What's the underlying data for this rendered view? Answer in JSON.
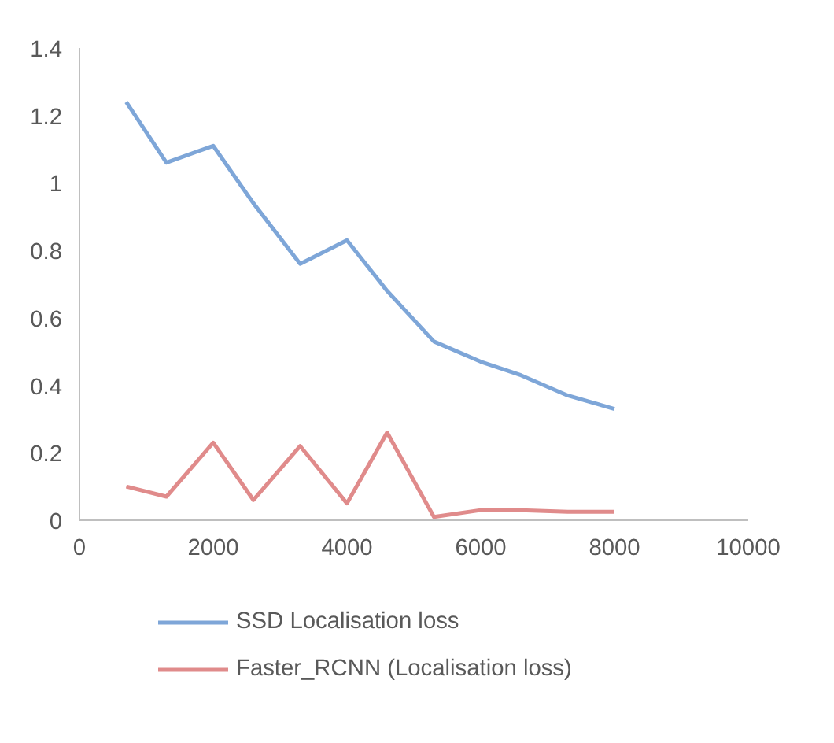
{
  "chart_data": {
    "type": "line",
    "x": [
      700,
      1300,
      2000,
      2600,
      3300,
      4000,
      4600,
      5300,
      6000,
      6600,
      7300,
      8000
    ],
    "series": [
      {
        "name": "SSD Localisation loss",
        "color": "#7ea6d8",
        "values": [
          1.24,
          1.06,
          1.11,
          0.94,
          0.76,
          0.83,
          0.68,
          0.53,
          0.47,
          0.43,
          0.37,
          0.33
        ]
      },
      {
        "name": "Faster_RCNN (Localisation loss)",
        "color": "#e08b8b",
        "values": [
          0.1,
          0.07,
          0.23,
          0.06,
          0.22,
          0.05,
          0.26,
          0.01,
          0.03,
          0.03,
          0.025,
          0.025
        ]
      }
    ],
    "xlim": [
      0,
      10000
    ],
    "xticks": [
      0,
      2000,
      4000,
      6000,
      8000,
      10000
    ],
    "ylim": [
      0,
      1.4
    ],
    "yticks": [
      0,
      0.2,
      0.4,
      0.6,
      0.8,
      1,
      1.2,
      1.4
    ],
    "grid": false,
    "legend": "bottom",
    "marker": "none",
    "line_style": "solid"
  }
}
